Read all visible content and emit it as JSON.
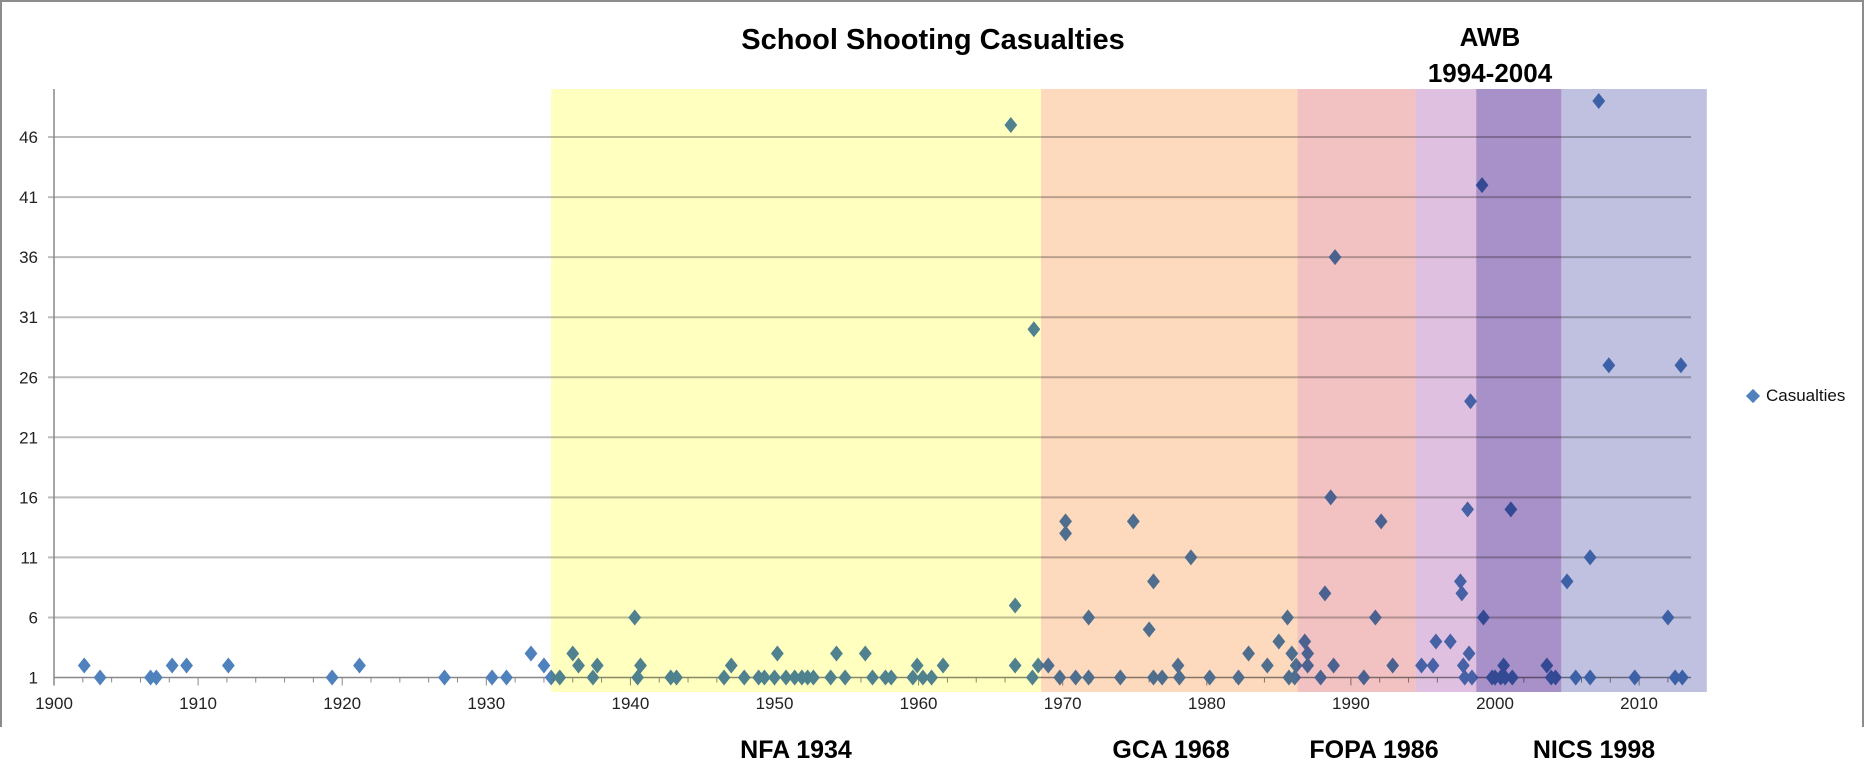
{
  "chart_data": {
    "type": "scatter",
    "title": "School Shooting Casualties",
    "xlabel": "",
    "ylabel": "",
    "xlim": [
      1900,
      2015
    ],
    "ylim": [
      1,
      50
    ],
    "x_ticks": [
      1900,
      1910,
      1920,
      1930,
      1940,
      1950,
      1960,
      1970,
      1980,
      1990,
      2000,
      2010
    ],
    "y_ticks": [
      1,
      6,
      11,
      16,
      21,
      26,
      31,
      36,
      41,
      46
    ],
    "grid": "horizontal",
    "legend_position": "right",
    "marker": "diamond",
    "series": [
      {
        "name": "Casualties",
        "color": "#4F81BD",
        "points": [
          [
            1902.1,
            2
          ],
          [
            1903.2,
            1
          ],
          [
            1906.7,
            1
          ],
          [
            1907.1,
            1
          ],
          [
            1908.2,
            2
          ],
          [
            1909.2,
            2
          ],
          [
            1912.1,
            2
          ],
          [
            1919.3,
            1
          ],
          [
            1921.2,
            2
          ],
          [
            1927.1,
            1
          ],
          [
            1930.4,
            1
          ],
          [
            1931.4,
            1
          ],
          [
            1933.1,
            3
          ],
          [
            1934.0,
            2
          ],
          [
            1934.5,
            1
          ],
          [
            1935.1,
            1
          ],
          [
            1936.0,
            3
          ],
          [
            1936.4,
            2
          ],
          [
            1937.4,
            1
          ],
          [
            1937.7,
            2
          ],
          [
            1940.3,
            6
          ],
          [
            1940.5,
            1
          ],
          [
            1940.7,
            2
          ],
          [
            1942.8,
            1
          ],
          [
            1943.2,
            1
          ],
          [
            1946.5,
            1
          ],
          [
            1947.0,
            2
          ],
          [
            1947.9,
            1
          ],
          [
            1948.9,
            1
          ],
          [
            1949.3,
            1
          ],
          [
            1950.0,
            1
          ],
          [
            1950.2,
            3
          ],
          [
            1950.8,
            1
          ],
          [
            1951.4,
            1
          ],
          [
            1951.9,
            1
          ],
          [
            1952.3,
            1
          ],
          [
            1952.7,
            1
          ],
          [
            1953.9,
            1
          ],
          [
            1954.3,
            3
          ],
          [
            1954.9,
            1
          ],
          [
            1956.3,
            3
          ],
          [
            1956.8,
            1
          ],
          [
            1957.7,
            1
          ],
          [
            1958.1,
            1
          ],
          [
            1959.6,
            1
          ],
          [
            1959.9,
            2
          ],
          [
            1960.3,
            1
          ],
          [
            1960.9,
            1
          ],
          [
            1961.7,
            2
          ],
          [
            1966.4,
            47
          ],
          [
            1966.7,
            7
          ],
          [
            1966.7,
            2
          ],
          [
            1968.0,
            30
          ],
          [
            1967.9,
            1
          ],
          [
            1968.3,
            2
          ],
          [
            1969.0,
            2
          ],
          [
            1969.8,
            1
          ],
          [
            1970.2,
            14
          ],
          [
            1970.2,
            13
          ],
          [
            1970.9,
            1
          ],
          [
            1971.8,
            6
          ],
          [
            1971.8,
            1
          ],
          [
            1974.0,
            1
          ],
          [
            1974.9,
            14
          ],
          [
            1976.0,
            5
          ],
          [
            1976.3,
            9
          ],
          [
            1976.3,
            1
          ],
          [
            1976.9,
            1
          ],
          [
            1978.0,
            2
          ],
          [
            1978.1,
            1
          ],
          [
            1978.9,
            11
          ],
          [
            1980.2,
            1
          ],
          [
            1982.2,
            1
          ],
          [
            1982.9,
            3
          ],
          [
            1984.2,
            2
          ],
          [
            1985.0,
            4
          ],
          [
            1985.6,
            6
          ],
          [
            1985.7,
            1
          ],
          [
            1985.9,
            3
          ],
          [
            1986.1,
            1
          ],
          [
            1986.2,
            2
          ],
          [
            1986.8,
            4
          ],
          [
            1987.0,
            3
          ],
          [
            1987.0,
            2
          ],
          [
            1987.9,
            1
          ],
          [
            1988.2,
            8
          ],
          [
            1988.6,
            16
          ],
          [
            1988.8,
            2
          ],
          [
            1988.9,
            36
          ],
          [
            1990.9,
            1
          ],
          [
            1991.7,
            6
          ],
          [
            1992.1,
            14
          ],
          [
            1992.9,
            2
          ],
          [
            1994.9,
            2
          ],
          [
            1995.7,
            2
          ],
          [
            1995.9,
            4
          ],
          [
            1996.9,
            4
          ],
          [
            1997.6,
            9
          ],
          [
            1997.7,
            8
          ],
          [
            1997.8,
            2
          ],
          [
            1997.9,
            1
          ],
          [
            1998.1,
            15
          ],
          [
            1998.2,
            3
          ],
          [
            1998.3,
            24
          ],
          [
            1998.4,
            1
          ],
          [
            1999.1,
            42
          ],
          [
            1999.2,
            6
          ],
          [
            1999.8,
            1
          ],
          [
            2000.0,
            1
          ],
          [
            2000.4,
            1
          ],
          [
            2000.6,
            2
          ],
          [
            2000.7,
            1
          ],
          [
            2001.1,
            15
          ],
          [
            2001.2,
            1
          ],
          [
            2003.6,
            2
          ],
          [
            2003.9,
            1
          ],
          [
            2004.2,
            1
          ],
          [
            2005.0,
            9
          ],
          [
            2005.6,
            1
          ],
          [
            2006.6,
            11
          ],
          [
            2006.6,
            1
          ],
          [
            2007.2,
            49
          ],
          [
            2007.9,
            27
          ],
          [
            2009.7,
            1
          ],
          [
            2012.0,
            6
          ],
          [
            2012.5,
            1
          ],
          [
            2012.9,
            27
          ],
          [
            2013.0,
            1
          ]
        ]
      }
    ],
    "bands": [
      {
        "from": 1934.5,
        "to": 1968.5,
        "color": "#FFFFC0",
        "label": "NFA 1934"
      },
      {
        "from": 1968.5,
        "to": 1986.3,
        "color": "#FDD9BE",
        "label": "GCA 1968"
      },
      {
        "from": 1986.3,
        "to": 1994.5,
        "color": "#F2C2C2",
        "label": "FOPA 1986"
      },
      {
        "from": 1994.5,
        "to": 1998.7,
        "color": "#E0C0E0",
        "label": ""
      },
      {
        "from": 1998.7,
        "to": 2004.6,
        "color": "#A890C8",
        "label": ""
      },
      {
        "from": 2004.6,
        "to": 2014.7,
        "color": "#C0C0E0",
        "label": "NICS 1998"
      }
    ],
    "annotations": {
      "awb_line1": "AWB",
      "awb_line2": "1994-2004"
    }
  }
}
